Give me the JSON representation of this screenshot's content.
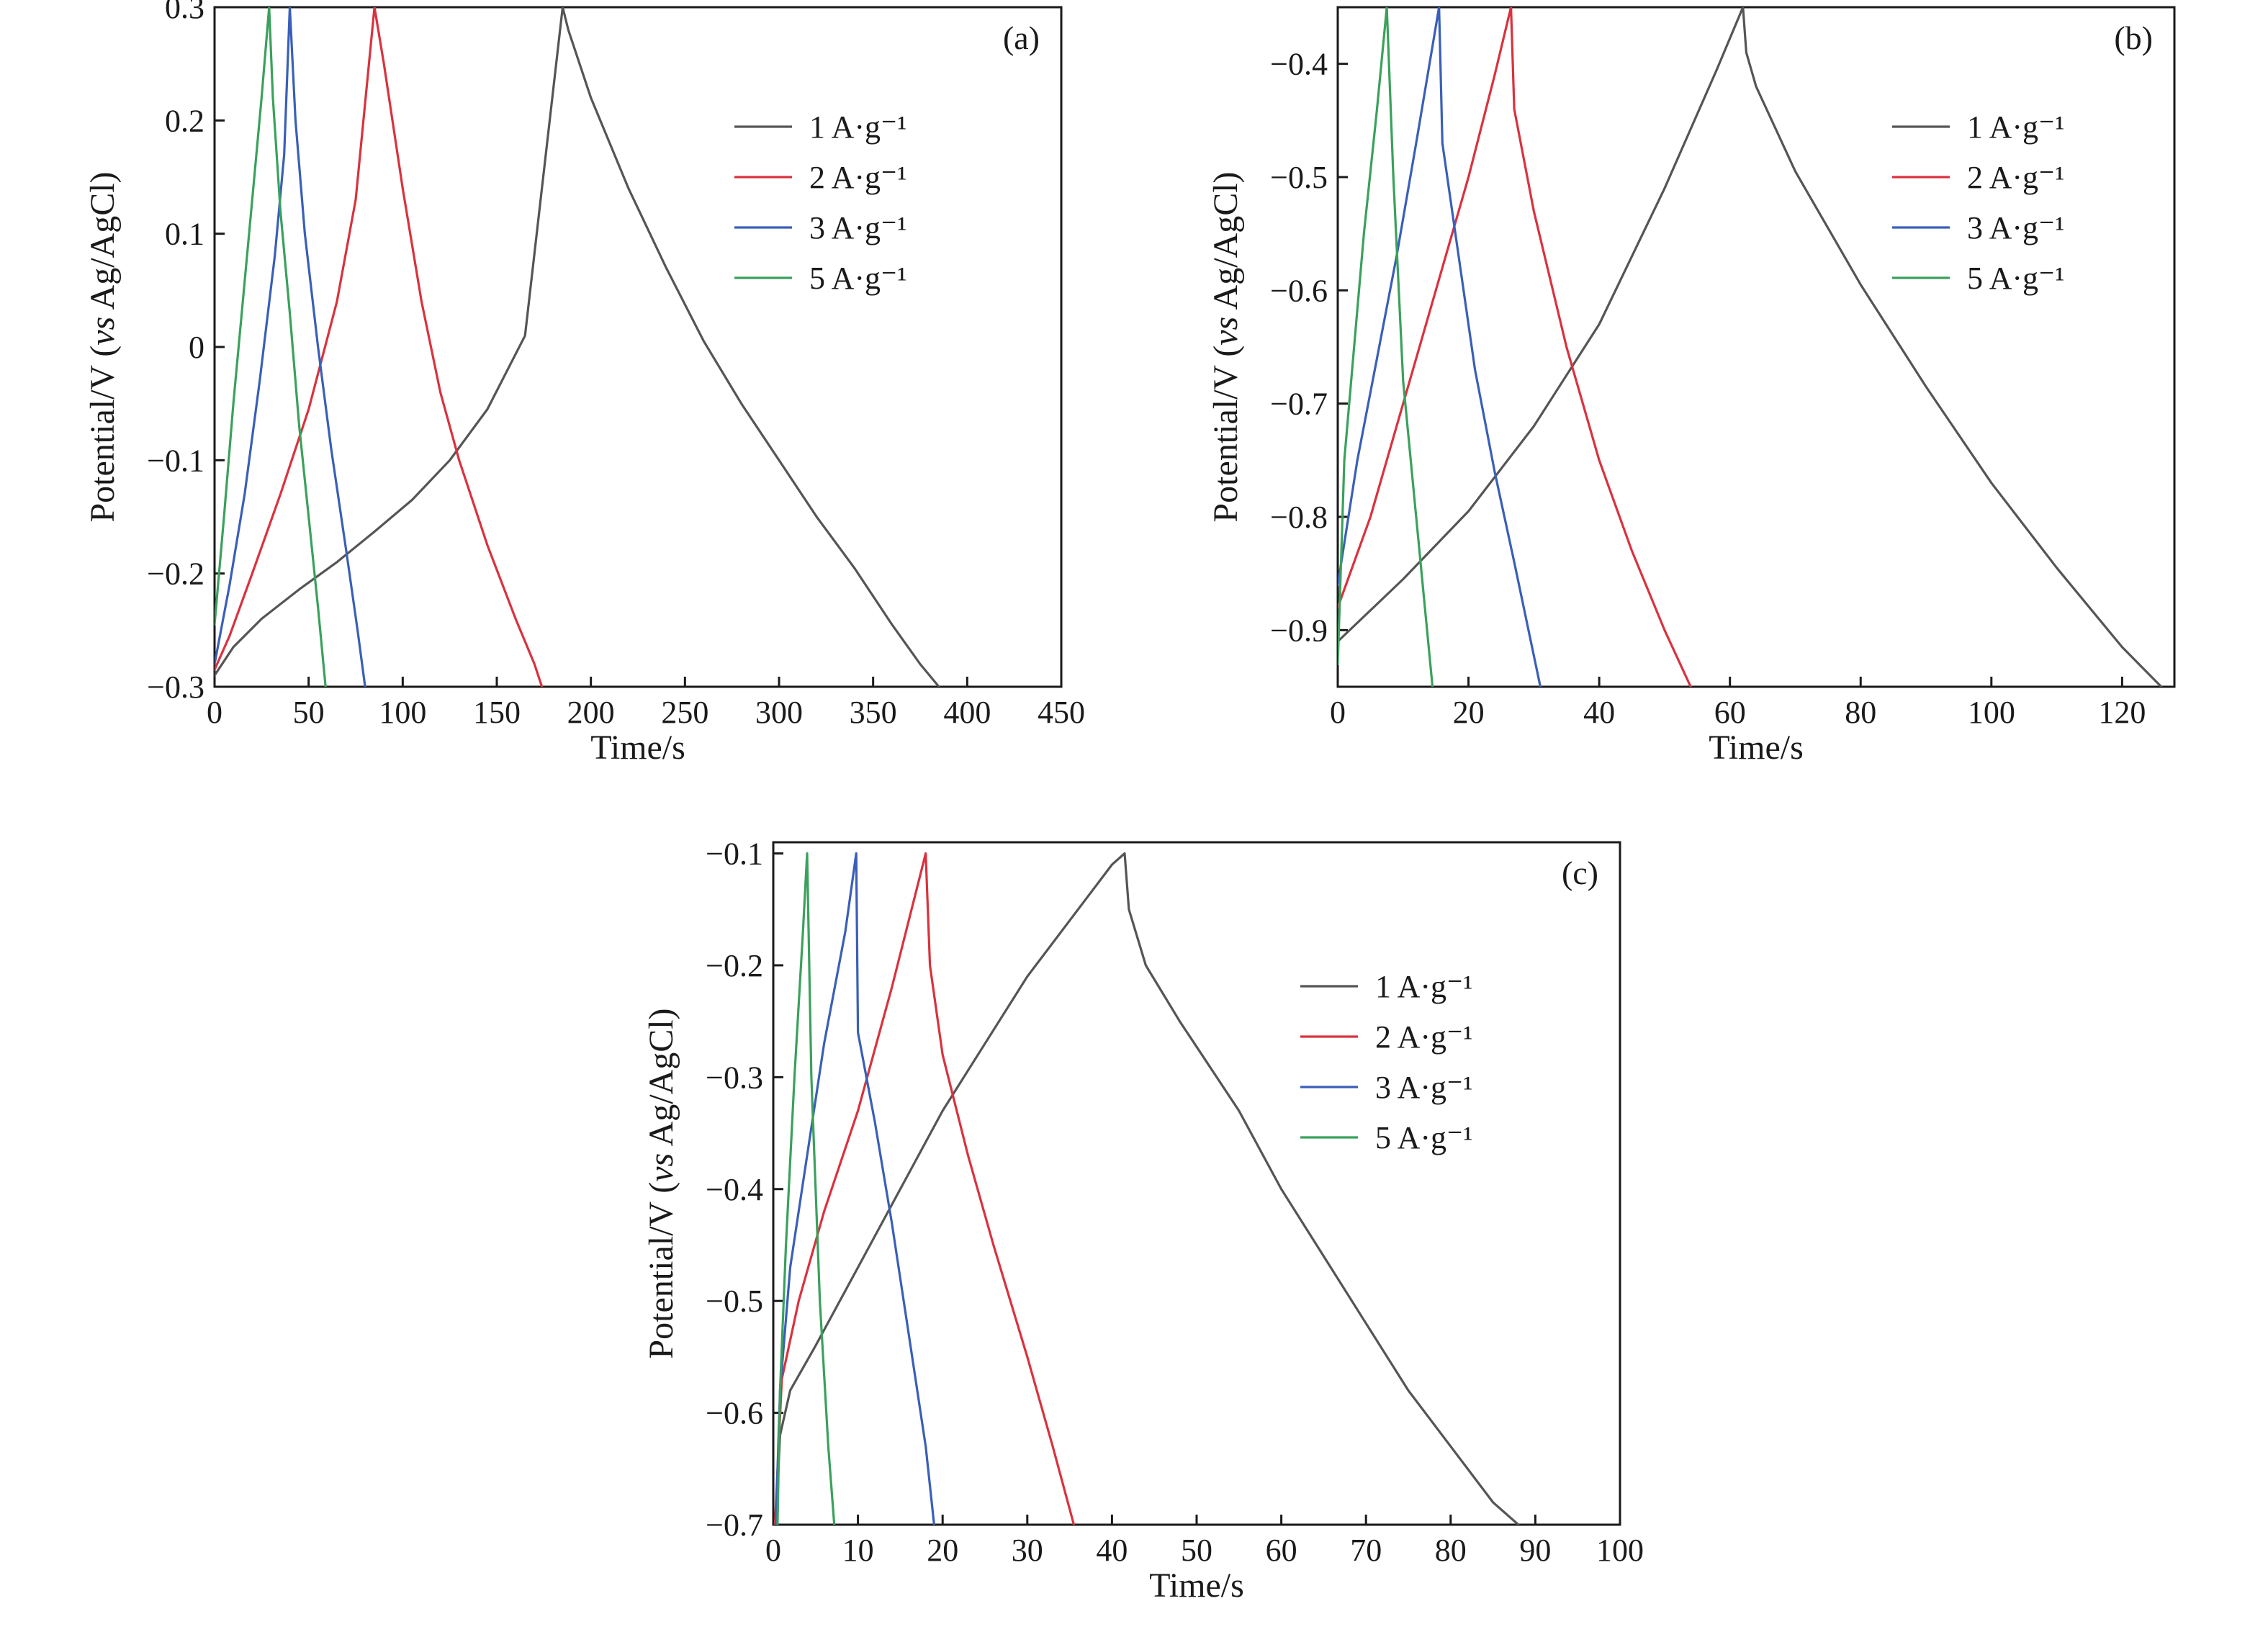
{
  "chart_data": [
    {
      "type": "line",
      "panel_label": "(a)",
      "xlabel": "Time/s",
      "ylabel_parts": [
        "Potential/V (",
        "vs",
        " Ag/AgCl)"
      ],
      "xlim": [
        0,
        450
      ],
      "ylim": [
        -0.3,
        0.3
      ],
      "xticks": [
        0,
        50,
        100,
        150,
        200,
        250,
        300,
        350,
        400,
        450
      ],
      "yticks": [
        -0.3,
        -0.2,
        -0.1,
        0,
        0.1,
        0.2,
        0.3
      ],
      "ytick_labels": [
        "−0.3",
        "−0.2",
        "−0.1",
        "0",
        "0.1",
        "0.2",
        "0.3"
      ],
      "legend_position": "top-right",
      "series": [
        {
          "name": "1 A·g⁻¹",
          "color": "#555555",
          "points": [
            [
              0,
              -0.29
            ],
            [
              10,
              -0.265
            ],
            [
              25,
              -0.24
            ],
            [
              45,
              -0.214
            ],
            [
              65,
              -0.19
            ],
            [
              85,
              -0.163
            ],
            [
              105,
              -0.135
            ],
            [
              125,
              -0.1
            ],
            [
              145,
              -0.055
            ],
            [
              165,
              0.01
            ],
            [
              185,
              0.3
            ],
            [
              188,
              0.28
            ],
            [
              200,
              0.22
            ],
            [
              220,
              0.14
            ],
            [
              240,
              0.07
            ],
            [
              260,
              0.005
            ],
            [
              280,
              -0.05
            ],
            [
              300,
              -0.1
            ],
            [
              320,
              -0.15
            ],
            [
              340,
              -0.195
            ],
            [
              360,
              -0.245
            ],
            [
              375,
              -0.28
            ],
            [
              385,
              -0.3
            ]
          ]
        },
        {
          "name": "2 A·g⁻¹",
          "color": "#d9323e",
          "points": [
            [
              0,
              -0.285
            ],
            [
              8,
              -0.255
            ],
            [
              20,
              -0.2
            ],
            [
              35,
              -0.13
            ],
            [
              50,
              -0.055
            ],
            [
              65,
              0.04
            ],
            [
              75,
              0.13
            ],
            [
              85,
              0.3
            ],
            [
              90,
              0.25
            ],
            [
              100,
              0.14
            ],
            [
              110,
              0.04
            ],
            [
              120,
              -0.04
            ],
            [
              130,
              -0.1
            ],
            [
              145,
              -0.175
            ],
            [
              160,
              -0.24
            ],
            [
              170,
              -0.28
            ],
            [
              174,
              -0.3
            ]
          ]
        },
        {
          "name": "3 A·g⁻¹",
          "color": "#3a5fb8",
          "points": [
            [
              0,
              -0.28
            ],
            [
              8,
              -0.21
            ],
            [
              16,
              -0.13
            ],
            [
              24,
              -0.03
            ],
            [
              32,
              0.08
            ],
            [
              37,
              0.17
            ],
            [
              40,
              0.3
            ],
            [
              43,
              0.2
            ],
            [
              48,
              0.1
            ],
            [
              55,
              0.0
            ],
            [
              62,
              -0.09
            ],
            [
              70,
              -0.18
            ],
            [
              76,
              -0.25
            ],
            [
              80,
              -0.3
            ]
          ]
        },
        {
          "name": "5 A·g⁻¹",
          "color": "#3aa15c",
          "points": [
            [
              0,
              -0.245
            ],
            [
              5,
              -0.15
            ],
            [
              10,
              -0.05
            ],
            [
              15,
              0.04
            ],
            [
              20,
              0.13
            ],
            [
              25,
              0.22
            ],
            [
              29,
              0.3
            ],
            [
              31,
              0.22
            ],
            [
              35,
              0.12
            ],
            [
              40,
              0.03
            ],
            [
              45,
              -0.07
            ],
            [
              50,
              -0.15
            ],
            [
              55,
              -0.23
            ],
            [
              59,
              -0.3
            ]
          ]
        }
      ]
    },
    {
      "type": "line",
      "panel_label": "(b)",
      "xlabel": "Time/s",
      "ylabel_parts": [
        "Potential/V (",
        "vs",
        " Ag/AgCl)"
      ],
      "xlim": [
        0,
        128
      ],
      "ylim": [
        -0.95,
        -0.35
      ],
      "xticks": [
        0,
        20,
        40,
        60,
        80,
        100,
        120
      ],
      "yticks": [
        -0.9,
        -0.8,
        -0.7,
        -0.6,
        -0.5,
        -0.4
      ],
      "ytick_labels": [
        "−0.9",
        "−0.8",
        "−0.7",
        "−0.6",
        "−0.5",
        "−0.4"
      ],
      "legend_position": "top-right",
      "series": [
        {
          "name": "1 A·g⁻¹",
          "color": "#555555",
          "points": [
            [
              0,
              -0.91
            ],
            [
              10,
              -0.855
            ],
            [
              20,
              -0.795
            ],
            [
              30,
              -0.72
            ],
            [
              40,
              -0.63
            ],
            [
              50,
              -0.51
            ],
            [
              58,
              -0.405
            ],
            [
              62,
              -0.35
            ],
            [
              62.5,
              -0.39
            ],
            [
              64,
              -0.42
            ],
            [
              70,
              -0.495
            ],
            [
              80,
              -0.595
            ],
            [
              90,
              -0.685
            ],
            [
              100,
              -0.77
            ],
            [
              110,
              -0.845
            ],
            [
              120,
              -0.915
            ],
            [
              126,
              -0.95
            ]
          ]
        },
        {
          "name": "2 A·g⁻¹",
          "color": "#d9323e",
          "points": [
            [
              0,
              -0.88
            ],
            [
              5,
              -0.8
            ],
            [
              10,
              -0.7
            ],
            [
              15,
              -0.6
            ],
            [
              20,
              -0.5
            ],
            [
              24,
              -0.41
            ],
            [
              26.5,
              -0.35
            ],
            [
              27,
              -0.44
            ],
            [
              30,
              -0.53
            ],
            [
              35,
              -0.65
            ],
            [
              40,
              -0.75
            ],
            [
              45,
              -0.83
            ],
            [
              50,
              -0.9
            ],
            [
              54,
              -0.95
            ]
          ]
        },
        {
          "name": "3 A·g⁻¹",
          "color": "#3a5fb8",
          "points": [
            [
              0,
              -0.86
            ],
            [
              3,
              -0.75
            ],
            [
              6,
              -0.66
            ],
            [
              9,
              -0.57
            ],
            [
              12,
              -0.47
            ],
            [
              15.5,
              -0.35
            ],
            [
              16,
              -0.47
            ],
            [
              18,
              -0.55
            ],
            [
              21,
              -0.67
            ],
            [
              24,
              -0.76
            ],
            [
              27,
              -0.84
            ],
            [
              31,
              -0.95
            ]
          ]
        },
        {
          "name": "5 A·g⁻¹",
          "color": "#3aa15c",
          "points": [
            [
              0,
              -0.93
            ],
            [
              1,
              -0.75
            ],
            [
              2.5,
              -0.65
            ],
            [
              4,
              -0.55
            ],
            [
              6,
              -0.44
            ],
            [
              7.5,
              -0.35
            ],
            [
              8.5,
              -0.5
            ],
            [
              10,
              -0.68
            ],
            [
              12,
              -0.8
            ],
            [
              14.5,
              -0.95
            ]
          ]
        }
      ]
    },
    {
      "type": "line",
      "panel_label": "(c)",
      "xlabel": "Time/s",
      "ylabel_parts": [
        "Potential/V (",
        "vs",
        " Ag/AgCl)"
      ],
      "xlim": [
        0,
        100
      ],
      "ylim": [
        -0.7,
        -0.09
      ],
      "xticks": [
        0,
        10,
        20,
        30,
        40,
        50,
        60,
        70,
        80,
        90,
        100
      ],
      "yticks": [
        -0.7,
        -0.6,
        -0.5,
        -0.4,
        -0.3,
        -0.2,
        -0.1
      ],
      "ytick_labels": [
        "−0.7",
        "−0.6",
        "−0.5",
        "−0.4",
        "−0.3",
        "−0.2",
        "−0.1"
      ],
      "legend_position": "top-right",
      "series": [
        {
          "name": "1 A·g⁻¹",
          "color": "#555555",
          "points": [
            [
              0.3,
              -0.7
            ],
            [
              0.8,
              -0.62
            ],
            [
              2,
              -0.58
            ],
            [
              5,
              -0.54
            ],
            [
              10,
              -0.47
            ],
            [
              15,
              -0.4
            ],
            [
              20,
              -0.33
            ],
            [
              25,
              -0.27
            ],
            [
              30,
              -0.21
            ],
            [
              35,
              -0.16
            ],
            [
              40,
              -0.11
            ],
            [
              41.5,
              -0.1
            ],
            [
              42,
              -0.15
            ],
            [
              44,
              -0.2
            ],
            [
              48,
              -0.25
            ],
            [
              55,
              -0.33
            ],
            [
              60,
              -0.4
            ],
            [
              65,
              -0.46
            ],
            [
              70,
              -0.52
            ],
            [
              75,
              -0.58
            ],
            [
              80,
              -0.63
            ],
            [
              85,
              -0.68
            ],
            [
              88,
              -0.7
            ]
          ]
        },
        {
          "name": "2 A·g⁻¹",
          "color": "#d9323e",
          "points": [
            [
              0.2,
              -0.7
            ],
            [
              1,
              -0.57
            ],
            [
              3,
              -0.5
            ],
            [
              6,
              -0.42
            ],
            [
              10,
              -0.33
            ],
            [
              14,
              -0.22
            ],
            [
              18,
              -0.1
            ],
            [
              18.5,
              -0.2
            ],
            [
              20,
              -0.28
            ],
            [
              23,
              -0.37
            ],
            [
              26,
              -0.45
            ],
            [
              30,
              -0.55
            ],
            [
              33,
              -0.63
            ],
            [
              35.5,
              -0.7
            ]
          ]
        },
        {
          "name": "3 A·g⁻¹",
          "color": "#3a5fb8",
          "points": [
            [
              0.3,
              -0.7
            ],
            [
              0.8,
              -0.58
            ],
            [
              2,
              -0.47
            ],
            [
              4,
              -0.37
            ],
            [
              6,
              -0.27
            ],
            [
              8.5,
              -0.17
            ],
            [
              9.8,
              -0.1
            ],
            [
              10,
              -0.26
            ],
            [
              12,
              -0.34
            ],
            [
              14,
              -0.43
            ],
            [
              16,
              -0.53
            ],
            [
              18,
              -0.63
            ],
            [
              19,
              -0.7
            ]
          ]
        },
        {
          "name": "5 A·g⁻¹",
          "color": "#3aa15c",
          "points": [
            [
              0.5,
              -0.7
            ],
            [
              0.8,
              -0.58
            ],
            [
              1.5,
              -0.45
            ],
            [
              2.5,
              -0.3
            ],
            [
              3.5,
              -0.17
            ],
            [
              4,
              -0.1
            ],
            [
              4.5,
              -0.3
            ],
            [
              5.5,
              -0.5
            ],
            [
              6.5,
              -0.63
            ],
            [
              7.2,
              -0.7
            ]
          ]
        }
      ]
    }
  ]
}
